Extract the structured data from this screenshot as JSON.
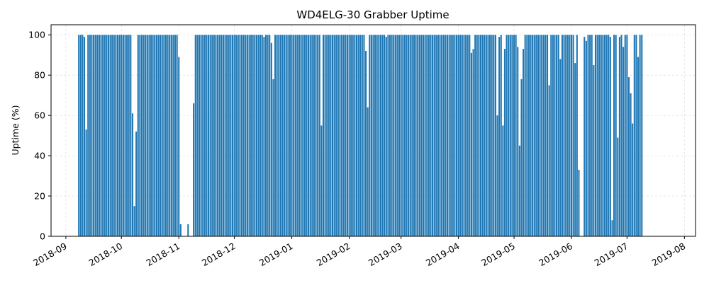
{
  "chart_data": {
    "type": "bar",
    "title": "WD4ELG-30 Grabber Uptime",
    "xlabel": "",
    "ylabel": "Uptime (%)",
    "xlim": [
      "2018-08-24",
      "2019-08-07"
    ],
    "ylim": [
      0,
      105
    ],
    "yticks": [
      0,
      20,
      40,
      60,
      80,
      100
    ],
    "xticks": [
      "2018-09",
      "2018-10",
      "2018-11",
      "2018-12",
      "2019-01",
      "2019-02",
      "2019-03",
      "2019-04",
      "2019-05",
      "2019-06",
      "2019-07",
      "2019-08"
    ],
    "grid": true,
    "bar_color": "#1f77b4",
    "start_date": "2018-09-08",
    "values": [
      100,
      100,
      100,
      99,
      53,
      100,
      100,
      100,
      100,
      100,
      100,
      100,
      100,
      100,
      100,
      100,
      100,
      100,
      100,
      100,
      100,
      100,
      100,
      100,
      100,
      100,
      100,
      100,
      100,
      61,
      15,
      52,
      100,
      100,
      100,
      100,
      100,
      100,
      100,
      100,
      100,
      100,
      100,
      100,
      100,
      100,
      100,
      100,
      100,
      100,
      100,
      100,
      100,
      100,
      89,
      6,
      0,
      0,
      0,
      6,
      0,
      0,
      66,
      100,
      100,
      100,
      100,
      100,
      100,
      100,
      100,
      100,
      100,
      100,
      100,
      100,
      100,
      100,
      100,
      100,
      100,
      100,
      100,
      100,
      100,
      100,
      100,
      100,
      100,
      100,
      100,
      100,
      100,
      100,
      100,
      100,
      100,
      100,
      100,
      100,
      99,
      100,
      100,
      100,
      96,
      78,
      100,
      100,
      100,
      100,
      100,
      100,
      100,
      100,
      100,
      100,
      100,
      100,
      100,
      100,
      100,
      100,
      100,
      100,
      100,
      100,
      100,
      100,
      100,
      100,
      100,
      55,
      100,
      100,
      100,
      100,
      100,
      100,
      100,
      100,
      100,
      100,
      100,
      100,
      100,
      100,
      100,
      100,
      100,
      100,
      100,
      100,
      100,
      100,
      100,
      92,
      64,
      100,
      100,
      100,
      100,
      100,
      100,
      100,
      100,
      100,
      99,
      100,
      100,
      100,
      100,
      100,
      100,
      100,
      100,
      100,
      100,
      100,
      100,
      100,
      100,
      100,
      100,
      100,
      100,
      100,
      100,
      100,
      100,
      100,
      100,
      100,
      100,
      100,
      100,
      100,
      100,
      100,
      100,
      100,
      100,
      100,
      100,
      100,
      100,
      100,
      100,
      100,
      100,
      100,
      100,
      100,
      91,
      93,
      100,
      100,
      100,
      100,
      100,
      100,
      100,
      100,
      100,
      100,
      100,
      100,
      60,
      99,
      100,
      55,
      93,
      100,
      100,
      100,
      100,
      100,
      100,
      94,
      45,
      78,
      93,
      100,
      100,
      100,
      100,
      100,
      100,
      100,
      100,
      100,
      100,
      100,
      100,
      100,
      75,
      100,
      100,
      100,
      100,
      100,
      88,
      100,
      100,
      100,
      100,
      100,
      100,
      100,
      86,
      100,
      33,
      0,
      0,
      99,
      97,
      100,
      100,
      100,
      85,
      100,
      100,
      100,
      100,
      100,
      100,
      100,
      100,
      99,
      8,
      100,
      100,
      49,
      99,
      100,
      94,
      100,
      100,
      79,
      71,
      56,
      100,
      100,
      89,
      100,
      100
    ]
  }
}
